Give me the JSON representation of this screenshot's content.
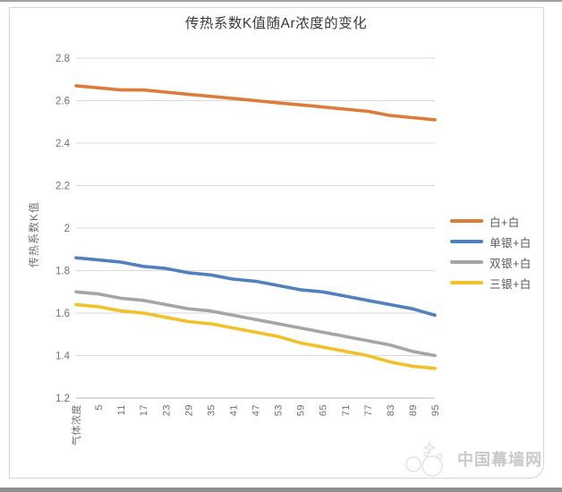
{
  "chart_data": {
    "type": "line",
    "title": "传热系数K值随Ar浓度的变化",
    "xlabel": "",
    "ylabel": "传热系数K值",
    "categories": [
      "气体浓度",
      "5",
      "11",
      "17",
      "23",
      "29",
      "35",
      "41",
      "47",
      "53",
      "59",
      "65",
      "71",
      "77",
      "83",
      "89",
      "95"
    ],
    "y_ticks": [
      "2.8",
      "2.6",
      "2.4",
      "2.2",
      "2",
      "1.8",
      "1.6",
      "1.4",
      "1.2"
    ],
    "ylim": [
      1.2,
      2.8
    ],
    "grid": true,
    "legend_position": "right",
    "series": [
      {
        "name": "白+白",
        "color": "#DF7B38",
        "values": [
          2.67,
          2.66,
          2.65,
          2.65,
          2.64,
          2.63,
          2.62,
          2.61,
          2.6,
          2.59,
          2.58,
          2.57,
          2.56,
          2.55,
          2.53,
          2.52,
          2.51
        ]
      },
      {
        "name": "单银+白",
        "color": "#4E81BD",
        "values": [
          1.86,
          1.85,
          1.84,
          1.82,
          1.81,
          1.79,
          1.78,
          1.76,
          1.75,
          1.73,
          1.71,
          1.7,
          1.68,
          1.66,
          1.64,
          1.62,
          1.59
        ]
      },
      {
        "name": "双银+白",
        "color": "#A5A5A5",
        "values": [
          1.7,
          1.69,
          1.67,
          1.66,
          1.64,
          1.62,
          1.61,
          1.59,
          1.57,
          1.55,
          1.53,
          1.51,
          1.49,
          1.47,
          1.45,
          1.42,
          1.4
        ]
      },
      {
        "name": "三银+白",
        "color": "#F2C027",
        "values": [
          1.64,
          1.63,
          1.61,
          1.6,
          1.58,
          1.56,
          1.55,
          1.53,
          1.51,
          1.49,
          1.46,
          1.44,
          1.42,
          1.4,
          1.37,
          1.35,
          1.34
        ]
      }
    ]
  },
  "watermark": {
    "text": "中国幕墙网"
  },
  "colors": {
    "grid": "#d9d9d9",
    "axis": "#b7b7b7",
    "tick_text": "#707070",
    "title_text": "#3a3a3a",
    "legend_text": "#595959",
    "watermark": "#c9c9c9",
    "frame": "#d6d6d6",
    "edge": "#8f8f8f"
  }
}
